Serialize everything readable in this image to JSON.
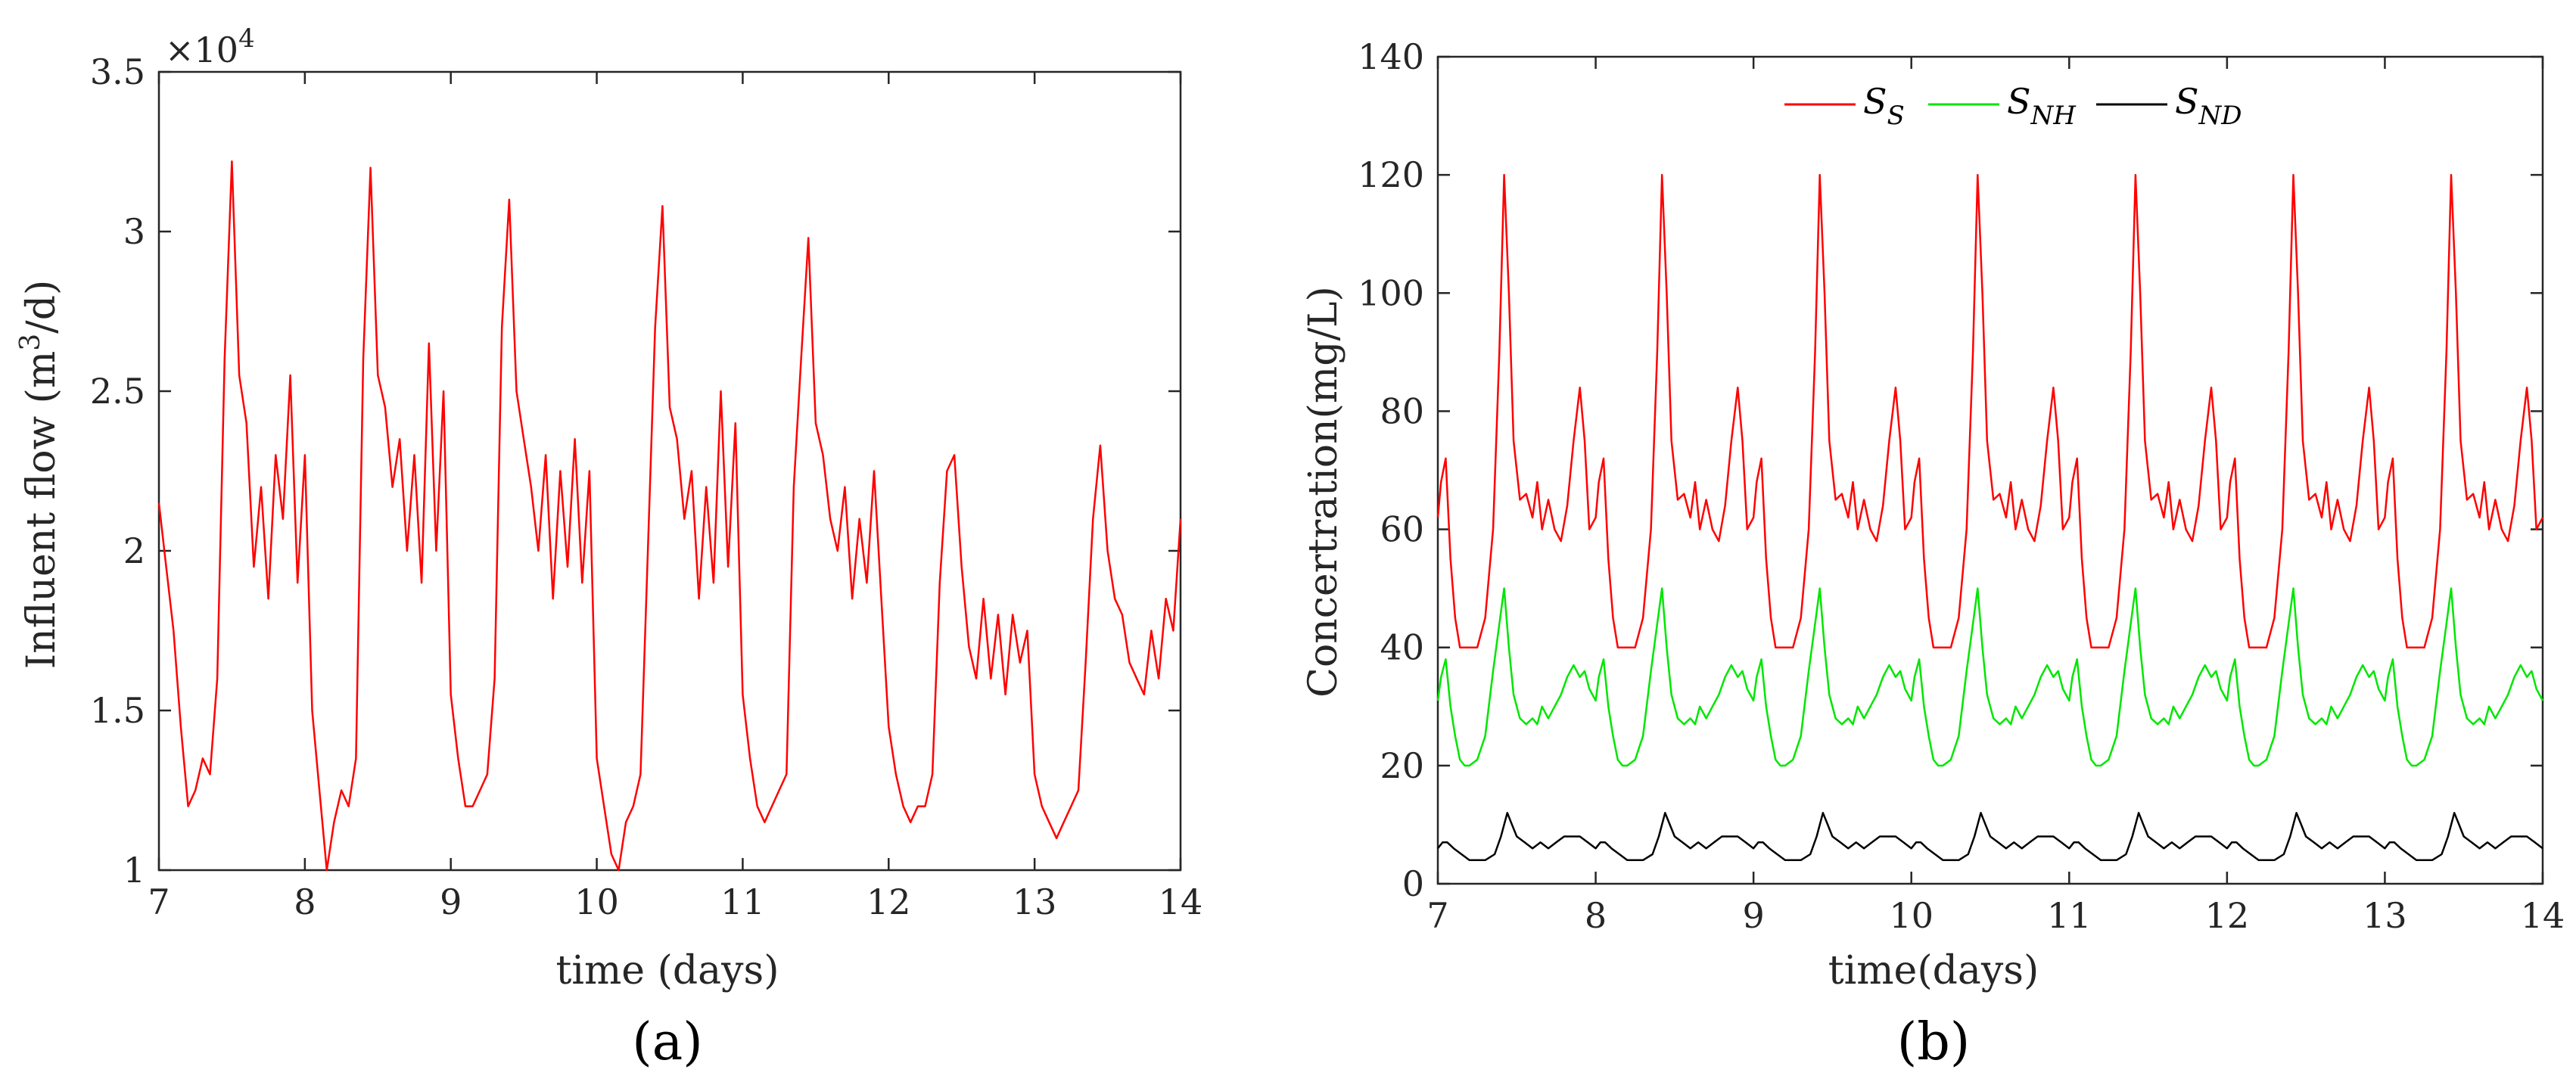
{
  "figure": {
    "panels": [
      "(a)",
      "(b)"
    ]
  },
  "chart_data": [
    {
      "type": "line",
      "panel": "(a)",
      "xlabel": "time (days)",
      "ylabel": "Influent flow (m³/d)",
      "ylabel_parts": {
        "prefix": "Influent flow (m",
        "sup": "3",
        "suffix": "/d)"
      },
      "y_multiplier_label": {
        "base": "×10",
        "exp": "4"
      },
      "xlim": [
        7,
        14
      ],
      "ylim": [
        1,
        3.5
      ],
      "xticks": [
        "7",
        "8",
        "9",
        "10",
        "11",
        "12",
        "13",
        "14"
      ],
      "yticks": [
        "1",
        "1.5",
        "2",
        "2.5",
        "3",
        "3.5"
      ],
      "xtick_values": [
        7,
        8,
        9,
        10,
        11,
        12,
        13,
        14
      ],
      "ytick_values": [
        1,
        1.5,
        2,
        2.5,
        3,
        3.5
      ],
      "series": [
        {
          "name": "Influent flow",
          "color": "#ff0000",
          "x": [
            7.0,
            7.05,
            7.1,
            7.15,
            7.2,
            7.25,
            7.3,
            7.35,
            7.4,
            7.45,
            7.5,
            7.55,
            7.6,
            7.65,
            7.7,
            7.75,
            7.8,
            7.85,
            7.9,
            7.95,
            8.0,
            8.05,
            8.1,
            8.15,
            8.2,
            8.25,
            8.3,
            8.35,
            8.4,
            8.45,
            8.5,
            8.55,
            8.6,
            8.65,
            8.7,
            8.75,
            8.8,
            8.85,
            8.9,
            8.95,
            9.0,
            9.05,
            9.1,
            9.15,
            9.2,
            9.25,
            9.3,
            9.35,
            9.4,
            9.45,
            9.5,
            9.55,
            9.6,
            9.65,
            9.7,
            9.75,
            9.8,
            9.85,
            9.9,
            9.95,
            10.0,
            10.05,
            10.1,
            10.15,
            10.2,
            10.25,
            10.3,
            10.35,
            10.4,
            10.45,
            10.5,
            10.55,
            10.6,
            10.65,
            10.7,
            10.75,
            10.8,
            10.85,
            10.9,
            10.95,
            11.0,
            11.05,
            11.1,
            11.15,
            11.2,
            11.25,
            11.3,
            11.35,
            11.4,
            11.45,
            11.5,
            11.55,
            11.6,
            11.65,
            11.7,
            11.75,
            11.8,
            11.85,
            11.9,
            11.95,
            12.0,
            12.05,
            12.1,
            12.15,
            12.2,
            12.25,
            12.3,
            12.35,
            12.4,
            12.45,
            12.5,
            12.55,
            12.6,
            12.65,
            12.7,
            12.75,
            12.8,
            12.85,
            12.9,
            12.95,
            13.0,
            13.05,
            13.1,
            13.15,
            13.2,
            13.25,
            13.3,
            13.35,
            13.4,
            13.45,
            13.5,
            13.55,
            13.6,
            13.65,
            13.7,
            13.75,
            13.8,
            13.85,
            13.9,
            13.95,
            14.0
          ],
          "y": [
            2.15,
            1.95,
            1.75,
            1.45,
            1.2,
            1.25,
            1.35,
            1.3,
            1.6,
            2.6,
            3.22,
            2.55,
            2.4,
            1.95,
            2.2,
            1.85,
            2.3,
            2.1,
            2.55,
            1.9,
            2.3,
            1.5,
            1.25,
            1.0,
            1.15,
            1.25,
            1.2,
            1.35,
            2.6,
            3.2,
            2.55,
            2.45,
            2.2,
            2.35,
            2.0,
            2.3,
            1.9,
            2.65,
            2.0,
            2.5,
            1.55,
            1.35,
            1.2,
            1.2,
            1.25,
            1.3,
            1.6,
            2.7,
            3.1,
            2.5,
            2.35,
            2.2,
            2.0,
            2.3,
            1.85,
            2.25,
            1.95,
            2.35,
            1.9,
            2.25,
            1.35,
            1.2,
            1.05,
            1.0,
            1.15,
            1.2,
            1.3,
            2.0,
            2.7,
            3.08,
            2.45,
            2.35,
            2.1,
            2.25,
            1.85,
            2.2,
            1.9,
            2.5,
            1.95,
            2.4,
            1.55,
            1.35,
            1.2,
            1.15,
            1.2,
            1.25,
            1.3,
            2.2,
            2.6,
            2.98,
            2.4,
            2.3,
            2.1,
            2.0,
            2.2,
            1.85,
            2.1,
            1.9,
            2.25,
            1.85,
            1.45,
            1.3,
            1.2,
            1.15,
            1.2,
            1.2,
            1.3,
            1.9,
            2.25,
            2.3,
            1.95,
            1.7,
            1.6,
            1.85,
            1.6,
            1.8,
            1.55,
            1.8,
            1.65,
            1.75,
            1.3,
            1.2,
            1.15,
            1.1,
            1.15,
            1.2,
            1.25,
            1.65,
            2.1,
            2.33,
            2.0,
            1.85,
            1.8,
            1.65,
            1.6,
            1.55,
            1.75,
            1.6,
            1.85,
            1.75,
            2.1
          ]
        }
      ]
    },
    {
      "type": "line",
      "panel": "(b)",
      "xlabel": "time(days)",
      "ylabel": "Concertration(mg/L)",
      "xlim": [
        7,
        14
      ],
      "ylim": [
        0,
        140
      ],
      "xticks": [
        "7",
        "8",
        "9",
        "10",
        "11",
        "12",
        "13",
        "14"
      ],
      "yticks": [
        "0",
        "20",
        "40",
        "60",
        "80",
        "100",
        "120",
        "140"
      ],
      "xtick_values": [
        7,
        8,
        9,
        10,
        11,
        12,
        13,
        14
      ],
      "ytick_values": [
        0,
        20,
        40,
        60,
        80,
        100,
        120,
        140
      ],
      "legend": {
        "placement": "top-center",
        "entries": [
          {
            "base": "S",
            "sub": "S",
            "color": "#ff0000"
          },
          {
            "base": "S",
            "sub": "NH",
            "color": "#00e600"
          },
          {
            "base": "S",
            "sub": "ND",
            "color": "#000000"
          }
        ]
      },
      "period_days": 1,
      "start_day": 7,
      "end_day": 14,
      "series": [
        {
          "name": "S_S",
          "color": "#ff0000",
          "daily_profile": {
            "t": [
              0.0,
              0.02,
              0.05,
              0.08,
              0.11,
              0.14,
              0.17,
              0.2,
              0.25,
              0.3,
              0.35,
              0.39,
              0.42,
              0.45,
              0.48,
              0.52,
              0.56,
              0.6,
              0.63,
              0.66,
              0.7,
              0.74,
              0.78,
              0.82,
              0.86,
              0.9,
              0.93,
              0.96,
              1.0
            ],
            "v": [
              62,
              68,
              72,
              55,
              45,
              40,
              40,
              40,
              40,
              45,
              60,
              90,
              120,
              100,
              75,
              65,
              66,
              62,
              68,
              60,
              65,
              60,
              58,
              64,
              75,
              84,
              75,
              60,
              62
            ]
          }
        },
        {
          "name": "S_NH",
          "color": "#00e600",
          "daily_profile": {
            "t": [
              0.0,
              0.02,
              0.05,
              0.08,
              0.11,
              0.14,
              0.17,
              0.2,
              0.25,
              0.3,
              0.35,
              0.39,
              0.42,
              0.45,
              0.48,
              0.52,
              0.56,
              0.6,
              0.63,
              0.66,
              0.7,
              0.74,
              0.78,
              0.82,
              0.86,
              0.9,
              0.93,
              0.96,
              1.0
            ],
            "v": [
              31,
              35,
              38,
              30,
              25,
              21,
              20,
              20,
              21,
              25,
              36,
              44,
              50,
              40,
              32,
              28,
              27,
              28,
              27,
              30,
              28,
              30,
              32,
              35,
              37,
              35,
              36,
              33,
              31
            ]
          }
        },
        {
          "name": "S_ND",
          "color": "#000000",
          "daily_profile": {
            "t": [
              0.0,
              0.03,
              0.06,
              0.1,
              0.15,
              0.2,
              0.25,
              0.3,
              0.36,
              0.4,
              0.44,
              0.47,
              0.5,
              0.55,
              0.6,
              0.65,
              0.7,
              0.75,
              0.8,
              0.85,
              0.9,
              0.95,
              1.0
            ],
            "v": [
              6,
              7,
              7,
              6,
              5,
              4,
              4,
              4,
              5,
              8,
              12,
              10,
              8,
              7,
              6,
              7,
              6,
              7,
              8,
              8,
              8,
              7,
              6
            ]
          }
        }
      ]
    }
  ]
}
